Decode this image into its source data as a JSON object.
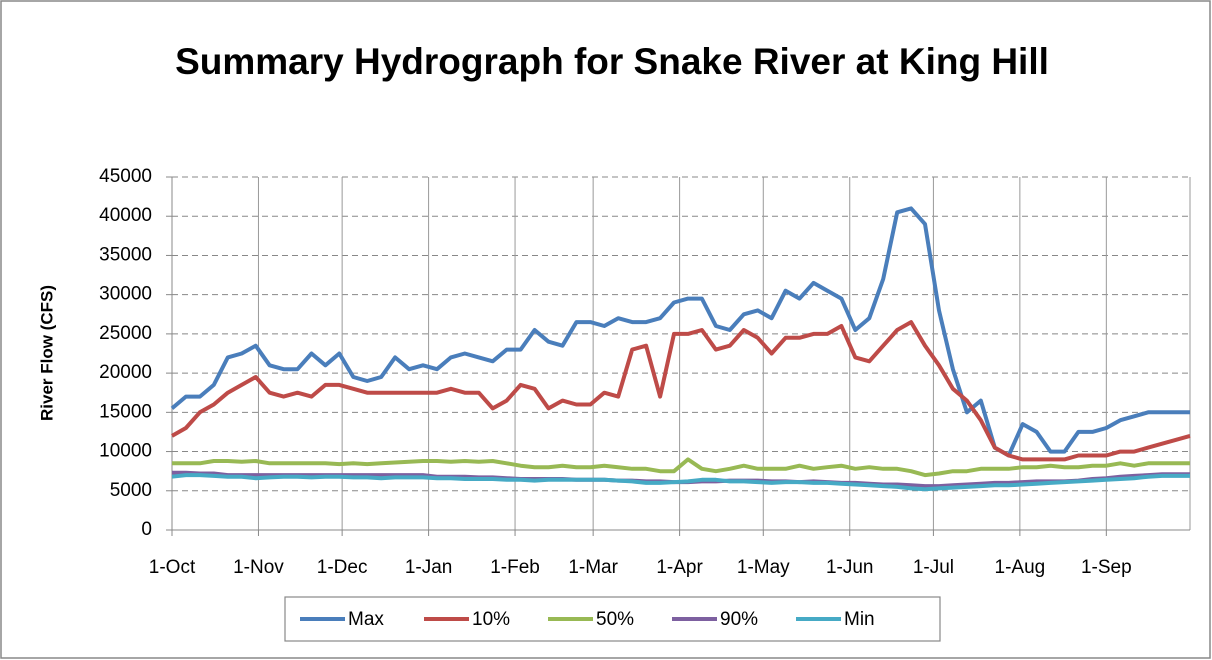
{
  "chart_data": {
    "type": "line",
    "title": "Summary Hydrograph for Snake River at King Hill",
    "y_label": "River Flow (CFS)",
    "x": [
      0,
      5,
      10,
      15,
      20,
      25,
      30,
      35,
      40,
      45,
      50,
      55,
      60,
      65,
      70,
      75,
      80,
      85,
      90,
      95,
      100,
      105,
      110,
      115,
      120,
      125,
      130,
      135,
      140,
      145,
      150,
      155,
      160,
      165,
      170,
      175,
      180,
      185,
      190,
      195,
      200,
      205,
      210,
      215,
      220,
      225,
      230,
      235,
      240,
      245,
      250,
      255,
      260,
      265,
      270,
      275,
      280,
      285,
      290,
      295,
      300,
      305,
      310,
      315,
      320,
      325,
      330,
      335,
      340,
      345,
      350,
      355,
      360,
      365
    ],
    "xlim": [
      0,
      365
    ],
    "xticks": [
      {
        "value": 0,
        "label": "1-Oct"
      },
      {
        "value": 31,
        "label": "1-Nov"
      },
      {
        "value": 61,
        "label": "1-Dec"
      },
      {
        "value": 92,
        "label": "1-Jan"
      },
      {
        "value": 123,
        "label": "1-Feb"
      },
      {
        "value": 151,
        "label": "1-Mar"
      },
      {
        "value": 182,
        "label": "1-Apr"
      },
      {
        "value": 212,
        "label": "1-May"
      },
      {
        "value": 243,
        "label": "1-Jun"
      },
      {
        "value": 273,
        "label": "1-Jul"
      },
      {
        "value": 304,
        "label": "1-Aug"
      },
      {
        "value": 335,
        "label": "1-Sep"
      }
    ],
    "ylim": [
      0,
      45000
    ],
    "yticks": [
      0,
      5000,
      10000,
      15000,
      20000,
      25000,
      30000,
      35000,
      40000,
      45000
    ],
    "grid": true,
    "legend": "bottom",
    "series": [
      {
        "name": "Max",
        "color": "#4a7ebb",
        "values": [
          15500,
          17000,
          17000,
          18500,
          22000,
          22500,
          23500,
          21000,
          20500,
          20500,
          22500,
          21000,
          22500,
          19500,
          19000,
          19500,
          22000,
          20500,
          21000,
          20500,
          22000,
          22500,
          22000,
          21500,
          23000,
          23000,
          25500,
          24000,
          23500,
          26500,
          26500,
          26000,
          27000,
          26500,
          26500,
          27000,
          29000,
          29500,
          29500,
          26000,
          25500,
          27500,
          28000,
          27000,
          30500,
          29500,
          31500,
          30500,
          29500,
          25500,
          27000,
          32000,
          40500,
          41000,
          39000,
          28000,
          20500,
          15000,
          16500,
          10500,
          9500,
          13500,
          12500,
          10000,
          10000,
          12500,
          12500,
          13000,
          14000,
          14500,
          15000,
          15000,
          15000,
          15000
        ]
      },
      {
        "name": "10%",
        "color": "#be4b48",
        "values": [
          12000,
          13000,
          15000,
          16000,
          17500,
          18500,
          19500,
          17500,
          17000,
          17500,
          17000,
          18500,
          18500,
          18000,
          17500,
          17500,
          17500,
          17500,
          17500,
          17500,
          18000,
          17500,
          17500,
          15500,
          16500,
          18500,
          18000,
          15500,
          16500,
          16000,
          16000,
          17500,
          17000,
          23000,
          23500,
          17000,
          25000,
          25000,
          25500,
          23000,
          23500,
          25500,
          24500,
          22500,
          24500,
          24500,
          25000,
          25000,
          26000,
          22000,
          21500,
          23500,
          25500,
          26500,
          23500,
          21000,
          18000,
          16500,
          14000,
          10500,
          9500,
          9000,
          9000,
          9000,
          9000,
          9500,
          9500,
          9500,
          10000,
          10000,
          10500,
          11000,
          11500,
          12000
        ]
      },
      {
        "name": "50%",
        "color": "#98b954",
        "values": [
          8500,
          8500,
          8500,
          8800,
          8800,
          8700,
          8800,
          8500,
          8500,
          8500,
          8500,
          8500,
          8400,
          8500,
          8400,
          8500,
          8600,
          8700,
          8800,
          8800,
          8700,
          8800,
          8700,
          8800,
          8500,
          8200,
          8000,
          8000,
          8200,
          8000,
          8000,
          8200,
          8000,
          7800,
          7800,
          7500,
          7500,
          9000,
          7800,
          7500,
          7800,
          8200,
          7800,
          7800,
          7800,
          8200,
          7800,
          8000,
          8200,
          7800,
          8000,
          7800,
          7800,
          7500,
          7000,
          7200,
          7500,
          7500,
          7800,
          7800,
          7800,
          8000,
          8000,
          8200,
          8000,
          8000,
          8200,
          8200,
          8500,
          8200,
          8500,
          8500,
          8500,
          8500
        ]
      },
      {
        "name": "90%",
        "color": "#7d60a0",
        "values": [
          7300,
          7300,
          7200,
          7200,
          7000,
          7000,
          7000,
          7000,
          7000,
          7000,
          7000,
          7000,
          7000,
          7000,
          7000,
          7000,
          7000,
          7000,
          7000,
          6800,
          6800,
          6800,
          6700,
          6700,
          6600,
          6500,
          6500,
          6500,
          6500,
          6400,
          6400,
          6400,
          6300,
          6300,
          6200,
          6200,
          6100,
          6100,
          6200,
          6200,
          6300,
          6300,
          6300,
          6200,
          6200,
          6100,
          6200,
          6100,
          6000,
          6000,
          5900,
          5800,
          5800,
          5700,
          5600,
          5600,
          5700,
          5800,
          5900,
          6000,
          6000,
          6100,
          6200,
          6200,
          6200,
          6300,
          6500,
          6600,
          6800,
          6900,
          7000,
          7100,
          7100,
          7100
        ]
      },
      {
        "name": "Min",
        "color": "#46aac5",
        "values": [
          6800,
          7000,
          7000,
          6900,
          6800,
          6800,
          6600,
          6700,
          6800,
          6800,
          6700,
          6800,
          6800,
          6700,
          6700,
          6600,
          6700,
          6700,
          6700,
          6600,
          6600,
          6500,
          6500,
          6500,
          6400,
          6400,
          6300,
          6400,
          6400,
          6400,
          6400,
          6400,
          6300,
          6200,
          6000,
          6000,
          6100,
          6200,
          6400,
          6400,
          6200,
          6200,
          6100,
          6000,
          6100,
          6100,
          6000,
          6000,
          5900,
          5800,
          5700,
          5600,
          5500,
          5300,
          5200,
          5300,
          5400,
          5500,
          5600,
          5700,
          5700,
          5800,
          5900,
          6000,
          6100,
          6200,
          6300,
          6400,
          6500,
          6600,
          6800,
          6900,
          6900,
          6900
        ]
      }
    ]
  }
}
